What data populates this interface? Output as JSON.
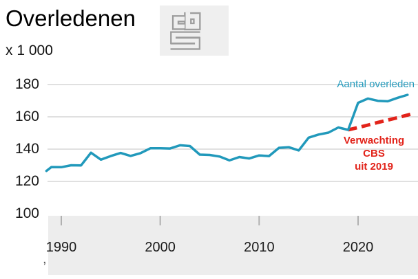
{
  "header": {
    "title": "Overledenen",
    "unit_label": "x 1 000",
    "logo_name": "cbs-logo"
  },
  "colors": {
    "actual_line": "#2199bb",
    "expected_line": "#e2231a",
    "gridline": "#c2c2c2",
    "tick": "#b0b0b0",
    "axis_band": "#ededed",
    "logo_bg": "#efefef",
    "logo_stroke": "#9d9d9d",
    "text": "#1a1a1a"
  },
  "legend": {
    "actual_label": "Aantal overleden",
    "expected_label_line1": "Verwachting CBS",
    "expected_label_line2": "uit 2019"
  },
  "axis": {
    "y_labels": [
      "180",
      "160",
      "140",
      "120",
      "100"
    ],
    "x_labels": [
      "1990",
      "2000",
      "2010",
      "2020"
    ],
    "stray_mark": ","
  },
  "chart_data": {
    "type": "line",
    "title": "Overledenen",
    "ylabel": "x 1 000",
    "ylim": [
      100,
      190
    ],
    "yticks": [
      180,
      160,
      140,
      120,
      100
    ],
    "gridline_values": [
      180,
      160,
      140,
      120
    ],
    "xticks": [
      1990,
      2000,
      2010,
      2020
    ],
    "xlim": [
      1988.5,
      2025.7
    ],
    "grid": "horizontal",
    "legend_position": "inline-annotations",
    "series": [
      {
        "name": "Aantal overleden",
        "color": "#2199bb",
        "style": "solid",
        "x": [
          1988.5,
          1989,
          1990,
          1991,
          1992,
          1993,
          1994,
          1995,
          1996,
          1997,
          1998,
          1999,
          2000,
          2001,
          2002,
          2003,
          2004,
          2005,
          2006,
          2007,
          2008,
          2009,
          2010,
          2011,
          2012,
          2013,
          2014,
          2015,
          2016,
          2017,
          2018,
          2019,
          2020,
          2021,
          2022,
          2023,
          2024,
          2025
        ],
        "values": [
          126.5,
          128.9,
          128.8,
          130.0,
          129.9,
          137.8,
          133.5,
          135.7,
          137.6,
          135.8,
          137.5,
          140.5,
          140.5,
          140.4,
          142.4,
          141.9,
          136.6,
          136.4,
          135.4,
          133.0,
          135.1,
          134.2,
          136.1,
          135.7,
          140.8,
          141.2,
          139.2,
          147.1,
          149.0,
          150.2,
          153.4,
          151.9,
          168.7,
          171.3,
          169.9,
          169.6,
          171.8,
          173.6
        ]
      },
      {
        "name": "Verwachting CBS uit 2019",
        "color": "#e2231a",
        "style": "dashed",
        "x": [
          2019,
          2020,
          2021,
          2022,
          2023,
          2024,
          2025,
          2025.7
        ],
        "values": [
          151.9,
          153.4,
          154.9,
          156.5,
          158.0,
          159.5,
          161.1,
          162.3
        ]
      }
    ]
  }
}
